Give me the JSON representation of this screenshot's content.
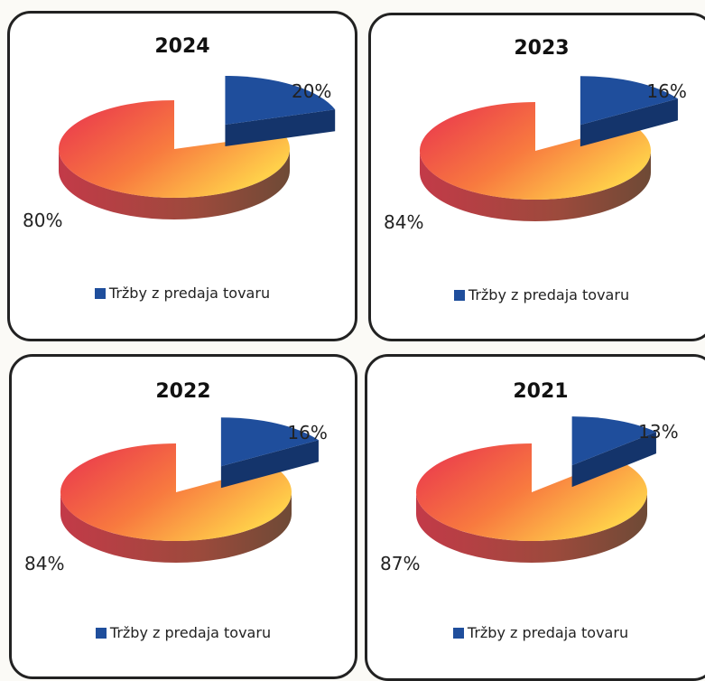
{
  "chart_data": [
    {
      "type": "pie",
      "title": "2024",
      "categories": [
        "",
        "Tržby z predaja tovaru"
      ],
      "values": [
        80,
        20
      ],
      "labels": [
        "80%",
        "20%"
      ],
      "legend": "Tržby z predaja tovaru",
      "legend_position": "bottom",
      "three_d": true,
      "exploded_slice": "Tržby z predaja tovaru"
    },
    {
      "type": "pie",
      "title": "2023",
      "categories": [
        "",
        "Tržby z predaja tovaru"
      ],
      "values": [
        84,
        16
      ],
      "labels": [
        "84%",
        "16%"
      ],
      "legend": "Tržby z predaja tovaru",
      "legend_position": "bottom",
      "three_d": true,
      "exploded_slice": "Tržby z predaja tovaru"
    },
    {
      "type": "pie",
      "title": "2022",
      "categories": [
        "",
        "Tržby z predaja tovaru"
      ],
      "values": [
        84,
        16
      ],
      "labels": [
        "84%",
        "16%"
      ],
      "legend": "Tržby z predaja tovaru",
      "legend_position": "bottom",
      "three_d": true,
      "exploded_slice": "Tržby z predaja tovaru"
    },
    {
      "type": "pie",
      "title": "2021",
      "categories": [
        "",
        "Tržby z predaja tovaru"
      ],
      "values": [
        87,
        13
      ],
      "labels": [
        "87%",
        "13%"
      ],
      "legend": "Tržby z predaja tovaru",
      "legend_position": "bottom",
      "three_d": true,
      "exploded_slice": "Tržby z predaja tovaru"
    }
  ],
  "colors": {
    "main_slice_light": "#ffd04a",
    "main_slice_mid": "#f87a3f",
    "main_slice_dark": "#e8304f",
    "main_slice_side": "#9c4a3c",
    "minor_slice": "#1f4e9c",
    "minor_slice_side": "#14346b"
  }
}
